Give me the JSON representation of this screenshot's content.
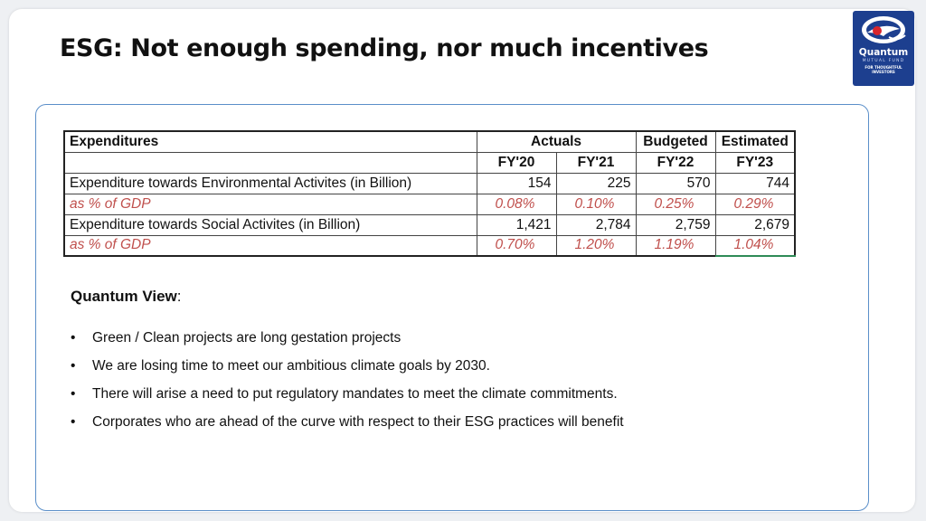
{
  "slide": {
    "title": "ESG: Not enough spending, nor much incentives"
  },
  "logo": {
    "name": "Quantum",
    "subtitle": "MUTUAL FUND",
    "tagline_1": "FOR THOUGHTFUL",
    "tagline_2": "INVESTORS",
    "colors": {
      "background": "#1d3f8f",
      "emblem_red": "#d9262c",
      "emblem_white": "#ffffff"
    }
  },
  "table": {
    "header_row_1": {
      "label": "Expenditures",
      "actuals": "Actuals",
      "budgeted": "Budgeted",
      "estimated": "Estimated"
    },
    "header_row_2": [
      "FY'20",
      "FY'21",
      "FY'22",
      "FY'23"
    ],
    "rows": [
      {
        "label": "Expenditure towards Environmental Activites (in Billion)",
        "values": [
          "154",
          "225",
          "570",
          "744"
        ]
      },
      {
        "label": "as % of GDP",
        "values": [
          "0.08%",
          "0.10%",
          "0.25%",
          "0.29%"
        ]
      },
      {
        "label": "Expenditure towards Social Activites (in Billion)",
        "values": [
          "1,421",
          "2,784",
          "2,759",
          "2,679"
        ]
      },
      {
        "label": "as % of GDP",
        "values": [
          "0.70%",
          "1.20%",
          "1.19%",
          "1.04%"
        ]
      }
    ],
    "colors": {
      "percent_text": "#c0504d"
    }
  },
  "quantum_view": {
    "heading": "Quantum View",
    "heading_suffix": ":",
    "bullets": [
      "Green / Clean projects are long gestation projects",
      "We are losing time to meet our ambitious climate goals by 2030.",
      "There will arise a need to put regulatory mandates to meet the climate commitments.",
      "Corporates who are ahead of the curve with respect to their ESG practices will benefit"
    ]
  }
}
